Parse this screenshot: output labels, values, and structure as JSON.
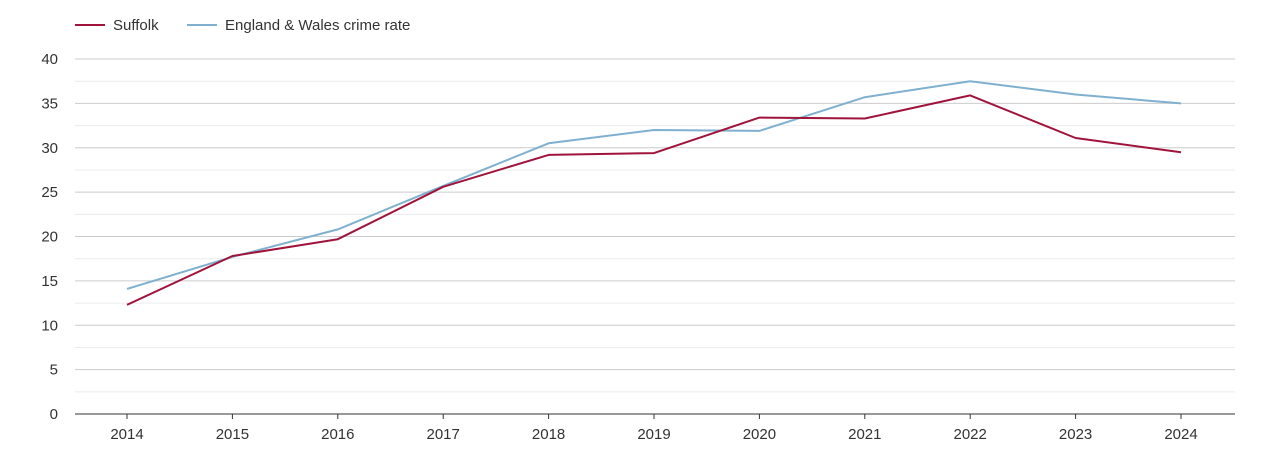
{
  "chart_data": {
    "type": "line",
    "title": "",
    "xlabel": "",
    "ylabel": "",
    "categories": [
      "2014",
      "2015",
      "2016",
      "2017",
      "2018",
      "2019",
      "2020",
      "2021",
      "2022",
      "2023",
      "2024"
    ],
    "ylim": [
      0,
      40
    ],
    "yticks": [
      "0",
      "5",
      "10",
      "15",
      "20",
      "25",
      "30",
      "35",
      "40"
    ],
    "grid": true,
    "legend_position": "top-left",
    "series": [
      {
        "name": "Suffolk",
        "color": "#a0143c",
        "values": [
          12.3,
          17.8,
          19.7,
          25.6,
          29.2,
          29.4,
          33.4,
          33.3,
          35.9,
          31.1,
          29.5
        ]
      },
      {
        "name": "England & Wales crime rate",
        "color": "#7fb0cf",
        "values": [
          14.1,
          17.7,
          20.8,
          25.7,
          30.5,
          32.0,
          31.9,
          35.7,
          37.5,
          36.0,
          35.0
        ]
      }
    ]
  }
}
